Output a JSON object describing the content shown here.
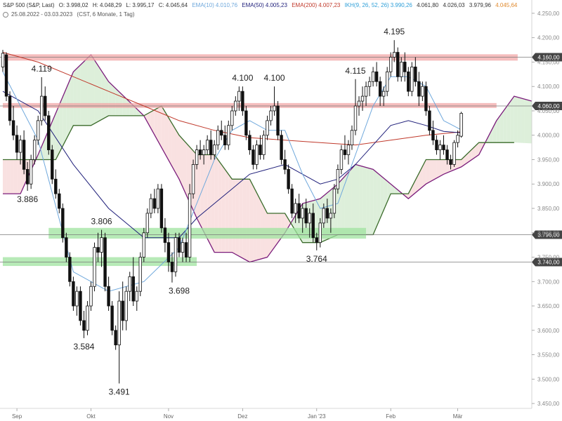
{
  "header": {
    "instrument": "S&P 500 (S&P, Last)",
    "open": "O: 3.998,02",
    "high": "H: 4.048,29",
    "low": "L: 3.995,17",
    "close": "C: 4.045,64",
    "ema10_label": "EMA(10)",
    "ema10_value": "4.010,76",
    "ema50_label": "EMA(50)",
    "ema50_value": "4.005,23",
    "ema200_label": "EMA(200)",
    "ema200_value": "4.007,23",
    "ikh_label": "IKH(9, 26, 52, 26)",
    "ikh_v1": "3.990,26",
    "ikh_v2": "4.061,80",
    "ikh_v3": "4.026,03",
    "ikh_v4": "3.979,96",
    "ikh_v5": "4.045,64",
    "range": "25.08.2022 - 03.03.2023",
    "range_info": "(CST, 6 Monate, 1 Tag)",
    "colors": {
      "ema10": "#6fa8dc",
      "ema50": "#1f1f7a",
      "ema200": "#c0392b",
      "ikh": "#2f9fd8",
      "last": "#e08a2e"
    }
  },
  "chart_data": {
    "type": "candlestick",
    "ylim": [
      3440,
      4260
    ],
    "y_ticks": [
      {
        "value": 3450,
        "label": "3.450,00"
      },
      {
        "value": 3500,
        "label": "3.500,00"
      },
      {
        "value": 3550,
        "label": "3.550,00"
      },
      {
        "value": 3600,
        "label": "3.600,00"
      },
      {
        "value": 3650,
        "label": "3.650,00"
      },
      {
        "value": 3700,
        "label": "3.700,00"
      },
      {
        "value": 3750,
        "label": "3.750,00"
      },
      {
        "value": 3800,
        "label": "3.800,00"
      },
      {
        "value": 3850,
        "label": "3.850,00"
      },
      {
        "value": 3900,
        "label": "3.900,00"
      },
      {
        "value": 3950,
        "label": "3.950,00"
      },
      {
        "value": 4000,
        "label": "4.000,00"
      },
      {
        "value": 4050,
        "label": "4.050,00"
      },
      {
        "value": 4100,
        "label": "4.100,00"
      },
      {
        "value": 4150,
        "label": "4.150,00"
      },
      {
        "value": 4200,
        "label": "4.200,00"
      },
      {
        "value": 4250,
        "label": "4.250,00"
      }
    ],
    "x_labels": [
      {
        "label": "Sep",
        "index": 4
      },
      {
        "label": "Okt",
        "index": 25
      },
      {
        "label": "Nov",
        "index": 47
      },
      {
        "label": "Dez",
        "index": 68
      },
      {
        "label": "Jan '23",
        "index": 89
      },
      {
        "label": "Feb",
        "index": 110
      },
      {
        "label": "Mär",
        "index": 129
      }
    ],
    "zones": [
      {
        "color": "red",
        "low": 4153,
        "high": 4166,
        "x_start": 0,
        "x_end": 146
      },
      {
        "color": "red",
        "low": 4056,
        "high": 4066,
        "x_start": 0,
        "x_end": 140
      },
      {
        "color": "green",
        "low": 3788,
        "high": 3810,
        "x_start": 13,
        "x_end": 103
      },
      {
        "color": "green",
        "low": 3732,
        "high": 3750,
        "x_start": 0,
        "x_end": 55
      }
    ],
    "levels": [
      {
        "value": 4160,
        "label": "4.160,00"
      },
      {
        "value": 4060,
        "label": "4.060,00"
      },
      {
        "value": 3796,
        "label": "3.796,00"
      },
      {
        "value": 3740,
        "label": "3.740,00"
      }
    ],
    "annotations": [
      {
        "text": "4.119",
        "index": 11,
        "value": 4119,
        "pos": "above"
      },
      {
        "text": "3.886",
        "index": 7,
        "value": 3886,
        "pos": "below"
      },
      {
        "text": "3.806",
        "index": 28,
        "value": 3806,
        "pos": "above"
      },
      {
        "text": "3.584",
        "index": 23,
        "value": 3584,
        "pos": "below"
      },
      {
        "text": "3.491",
        "index": 33,
        "value": 3491,
        "pos": "below"
      },
      {
        "text": "3.698",
        "index": 50,
        "value": 3698,
        "pos": "below"
      },
      {
        "text": "4.100",
        "index": 68,
        "value": 4100,
        "pos": "above"
      },
      {
        "text": "4.100",
        "index": 77,
        "value": 4100,
        "pos": "above"
      },
      {
        "text": "3.764",
        "index": 89,
        "value": 3764,
        "pos": "below"
      },
      {
        "text": "4.115",
        "index": 100,
        "value": 4115,
        "pos": "above"
      },
      {
        "text": "4.195",
        "index": 111,
        "value": 4195,
        "pos": "above"
      }
    ],
    "ohlc": [
      [
        4140,
        4175,
        4130,
        4168
      ],
      [
        4165,
        4170,
        4070,
        4080
      ],
      [
        4080,
        4090,
        4020,
        4030
      ],
      [
        4030,
        4060,
        3990,
        4000
      ],
      [
        4000,
        4020,
        3950,
        3965
      ],
      [
        3965,
        4000,
        3940,
        3990
      ],
      [
        3990,
        4010,
        3920,
        3930
      ],
      [
        3930,
        3945,
        3886,
        3900
      ],
      [
        3900,
        3960,
        3890,
        3950
      ],
      [
        3950,
        4000,
        3940,
        3990
      ],
      [
        3990,
        4040,
        3980,
        4030
      ],
      [
        4030,
        4119,
        4020,
        4080
      ],
      [
        4080,
        4100,
        4030,
        4040
      ],
      [
        4040,
        4050,
        3960,
        3970
      ],
      [
        3970,
        3980,
        3900,
        3910
      ],
      [
        3910,
        3930,
        3870,
        3880
      ],
      [
        3880,
        3890,
        3840,
        3850
      ],
      [
        3850,
        3860,
        3780,
        3790
      ],
      [
        3790,
        3800,
        3740,
        3750
      ],
      [
        3750,
        3760,
        3690,
        3700
      ],
      [
        3700,
        3710,
        3640,
        3650
      ],
      [
        3650,
        3690,
        3630,
        3680
      ],
      [
        3680,
        3690,
        3610,
        3620
      ],
      [
        3620,
        3640,
        3584,
        3600
      ],
      [
        3600,
        3660,
        3590,
        3650
      ],
      [
        3650,
        3700,
        3640,
        3690
      ],
      [
        3690,
        3780,
        3680,
        3770
      ],
      [
        3770,
        3800,
        3740,
        3760
      ],
      [
        3760,
        3806,
        3730,
        3790
      ],
      [
        3790,
        3800,
        3680,
        3690
      ],
      [
        3690,
        3710,
        3640,
        3650
      ],
      [
        3650,
        3660,
        3590,
        3600
      ],
      [
        3600,
        3610,
        3560,
        3570
      ],
      [
        3570,
        3680,
        3491,
        3660
      ],
      [
        3660,
        3700,
        3600,
        3620
      ],
      [
        3620,
        3690,
        3600,
        3680
      ],
      [
        3680,
        3720,
        3660,
        3710
      ],
      [
        3710,
        3750,
        3650,
        3660
      ],
      [
        3660,
        3690,
        3640,
        3680
      ],
      [
        3680,
        3760,
        3670,
        3750
      ],
      [
        3750,
        3810,
        3740,
        3800
      ],
      [
        3800,
        3850,
        3790,
        3840
      ],
      [
        3840,
        3880,
        3830,
        3870
      ],
      [
        3870,
        3890,
        3840,
        3850
      ],
      [
        3850,
        3900,
        3840,
        3890
      ],
      [
        3890,
        3900,
        3800,
        3810
      ],
      [
        3810,
        3830,
        3760,
        3780
      ],
      [
        3780,
        3800,
        3720,
        3740
      ],
      [
        3740,
        3760,
        3698,
        3720
      ],
      [
        3720,
        3800,
        3710,
        3790
      ],
      [
        3790,
        3800,
        3750,
        3760
      ],
      [
        3760,
        3790,
        3740,
        3780
      ],
      [
        3780,
        3800,
        3740,
        3750
      ],
      [
        3750,
        3900,
        3740,
        3880
      ],
      [
        3880,
        3950,
        3870,
        3940
      ],
      [
        3940,
        3980,
        3930,
        3970
      ],
      [
        3970,
        3990,
        3950,
        3960
      ],
      [
        3960,
        3980,
        3940,
        3970
      ],
      [
        3970,
        4000,
        3960,
        3990
      ],
      [
        3990,
        4010,
        3950,
        3960
      ],
      [
        3960,
        3990,
        3950,
        3980
      ],
      [
        3980,
        4020,
        3970,
        4010
      ],
      [
        4010,
        4030,
        3990,
        4000
      ],
      [
        4000,
        4020,
        3970,
        3980
      ],
      [
        3980,
        4030,
        3970,
        4020
      ],
      [
        4020,
        4060,
        4010,
        4050
      ],
      [
        4050,
        4080,
        4040,
        4070
      ],
      [
        4070,
        4100,
        4050,
        4090
      ],
      [
        4090,
        4100,
        4040,
        4050
      ],
      [
        4050,
        4060,
        3990,
        4000
      ],
      [
        4000,
        4010,
        3960,
        3970
      ],
      [
        3970,
        3980,
        3930,
        3940
      ],
      [
        3940,
        3990,
        3930,
        3980
      ],
      [
        3980,
        4000,
        3950,
        3960
      ],
      [
        3960,
        4010,
        3950,
        4000
      ],
      [
        4000,
        4040,
        3990,
        4030
      ],
      [
        4030,
        4060,
        4020,
        4050
      ],
      [
        4050,
        4100,
        4040,
        4060
      ],
      [
        4060,
        4070,
        3990,
        4000
      ],
      [
        4000,
        4010,
        3940,
        3950
      ],
      [
        3950,
        3970,
        3920,
        3930
      ],
      [
        3930,
        3940,
        3880,
        3890
      ],
      [
        3890,
        3900,
        3830,
        3840
      ],
      [
        3840,
        3870,
        3820,
        3860
      ],
      [
        3860,
        3880,
        3820,
        3830
      ],
      [
        3830,
        3860,
        3800,
        3850
      ],
      [
        3850,
        3870,
        3810,
        3820
      ],
      [
        3820,
        3850,
        3790,
        3840
      ],
      [
        3840,
        3860,
        3780,
        3790
      ],
      [
        3790,
        3800,
        3764,
        3780
      ],
      [
        3780,
        3830,
        3770,
        3820
      ],
      [
        3820,
        3860,
        3810,
        3850
      ],
      [
        3850,
        3870,
        3820,
        3830
      ],
      [
        3830,
        3850,
        3800,
        3840
      ],
      [
        3840,
        3900,
        3830,
        3890
      ],
      [
        3890,
        3940,
        3880,
        3930
      ],
      [
        3930,
        3980,
        3920,
        3970
      ],
      [
        3970,
        4000,
        3950,
        3960
      ],
      [
        3960,
        3990,
        3940,
        3980
      ],
      [
        3980,
        4020,
        3970,
        4010
      ],
      [
        4010,
        4115,
        4000,
        4060
      ],
      [
        4060,
        4080,
        4040,
        4070
      ],
      [
        4070,
        4100,
        4050,
        4080
      ],
      [
        4080,
        4110,
        4060,
        4100
      ],
      [
        4100,
        4120,
        4080,
        4110
      ],
      [
        4110,
        4140,
        4100,
        4130
      ],
      [
        4130,
        4150,
        4100,
        4110
      ],
      [
        4110,
        4120,
        4060,
        4080
      ],
      [
        4080,
        4100,
        4060,
        4090
      ],
      [
        4090,
        4140,
        4080,
        4130
      ],
      [
        4130,
        4170,
        4120,
        4160
      ],
      [
        4160,
        4195,
        4150,
        4170
      ],
      [
        4170,
        4180,
        4110,
        4120
      ],
      [
        4120,
        4160,
        4110,
        4150
      ],
      [
        4150,
        4170,
        4110,
        4130
      ],
      [
        4130,
        4140,
        4080,
        4090
      ],
      [
        4090,
        4150,
        4080,
        4140
      ],
      [
        4140,
        4160,
        4100,
        4110
      ],
      [
        4110,
        4130,
        4060,
        4080
      ],
      [
        4080,
        4110,
        4070,
        4100
      ],
      [
        4100,
        4110,
        4040,
        4050
      ],
      [
        4050,
        4060,
        4000,
        4010
      ],
      [
        4010,
        4030,
        3980,
        3990
      ],
      [
        3990,
        4000,
        3960,
        3970
      ],
      [
        3970,
        3990,
        3950,
        3980
      ],
      [
        3980,
        4000,
        3960,
        3970
      ],
      [
        3970,
        3980,
        3940,
        3950
      ],
      [
        3950,
        3960,
        3930,
        3940
      ],
      [
        3940,
        3990,
        3935,
        3985
      ],
      [
        3985,
        4010,
        3975,
        4000
      ],
      [
        3998,
        4048,
        3995,
        4045
      ]
    ],
    "ema10": [
      [
        0,
        4130
      ],
      [
        10,
        3990
      ],
      [
        20,
        3720
      ],
      [
        30,
        3680
      ],
      [
        40,
        3700
      ],
      [
        50,
        3770
      ],
      [
        55,
        3860
      ],
      [
        60,
        3950
      ],
      [
        65,
        4010
      ],
      [
        70,
        4030
      ],
      [
        75,
        4010
      ],
      [
        80,
        4010
      ],
      [
        85,
        3920
      ],
      [
        90,
        3850
      ],
      [
        95,
        3860
      ],
      [
        100,
        3960
      ],
      [
        105,
        4060
      ],
      [
        110,
        4120
      ],
      [
        115,
        4120
      ],
      [
        120,
        4100
      ],
      [
        125,
        4030
      ],
      [
        130,
        4011
      ]
    ],
    "ema50": [
      [
        0,
        4090
      ],
      [
        10,
        4050
      ],
      [
        20,
        3940
      ],
      [
        30,
        3850
      ],
      [
        40,
        3790
      ],
      [
        50,
        3790
      ],
      [
        55,
        3830
      ],
      [
        60,
        3860
      ],
      [
        65,
        3890
      ],
      [
        70,
        3920
      ],
      [
        75,
        3930
      ],
      [
        80,
        3940
      ],
      [
        85,
        3920
      ],
      [
        90,
        3900
      ],
      [
        95,
        3910
      ],
      [
        100,
        3940
      ],
      [
        105,
        3980
      ],
      [
        110,
        4020
      ],
      [
        115,
        4030
      ],
      [
        120,
        4020
      ],
      [
        125,
        4008
      ],
      [
        130,
        4005
      ]
    ],
    "ema200": [
      [
        0,
        4170
      ],
      [
        10,
        4150
      ],
      [
        20,
        4120
      ],
      [
        30,
        4090
      ],
      [
        40,
        4060
      ],
      [
        50,
        4030
      ],
      [
        60,
        4010
      ],
      [
        70,
        3995
      ],
      [
        80,
        3990
      ],
      [
        90,
        3985
      ],
      [
        100,
        3980
      ],
      [
        110,
        3990
      ],
      [
        120,
        4000
      ],
      [
        130,
        4007
      ]
    ],
    "cloud_span_a": [
      [
        0,
        3880
      ],
      [
        5,
        3880
      ],
      [
        10,
        3960
      ],
      [
        20,
        4130
      ],
      [
        25,
        4165
      ],
      [
        30,
        4110
      ],
      [
        40,
        4040
      ],
      [
        50,
        3910
      ],
      [
        55,
        3830
      ],
      [
        60,
        3760
      ],
      [
        65,
        3760
      ],
      [
        70,
        3740
      ],
      [
        75,
        3750
      ],
      [
        80,
        3800
      ],
      [
        85,
        3860
      ],
      [
        90,
        3870
      ],
      [
        95,
        3900
      ],
      [
        100,
        3940
      ],
      [
        105,
        3930
      ],
      [
        110,
        3900
      ],
      [
        115,
        3870
      ],
      [
        120,
        3900
      ],
      [
        125,
        3920
      ],
      [
        130,
        3935
      ],
      [
        135,
        3960
      ],
      [
        140,
        4030
      ],
      [
        145,
        4080
      ],
      [
        150,
        4070
      ],
      [
        155,
        4058
      ],
      [
        160,
        4060
      ]
    ],
    "cloud_span_b": [
      [
        0,
        3950
      ],
      [
        15,
        3950
      ],
      [
        20,
        4020
      ],
      [
        25,
        4020
      ],
      [
        30,
        4040
      ],
      [
        40,
        4040
      ],
      [
        45,
        4060
      ],
      [
        50,
        4000
      ],
      [
        55,
        3960
      ],
      [
        60,
        3960
      ],
      [
        65,
        3910
      ],
      [
        70,
        3910
      ],
      [
        75,
        3840
      ],
      [
        80,
        3840
      ],
      [
        85,
        3780
      ],
      [
        90,
        3780
      ],
      [
        95,
        3796
      ],
      [
        105,
        3796
      ],
      [
        110,
        3880
      ],
      [
        115,
        3880
      ],
      [
        120,
        3950
      ],
      [
        130,
        3950
      ],
      [
        135,
        3985
      ],
      [
        145,
        3985
      ],
      [
        160,
        3980
      ]
    ]
  }
}
